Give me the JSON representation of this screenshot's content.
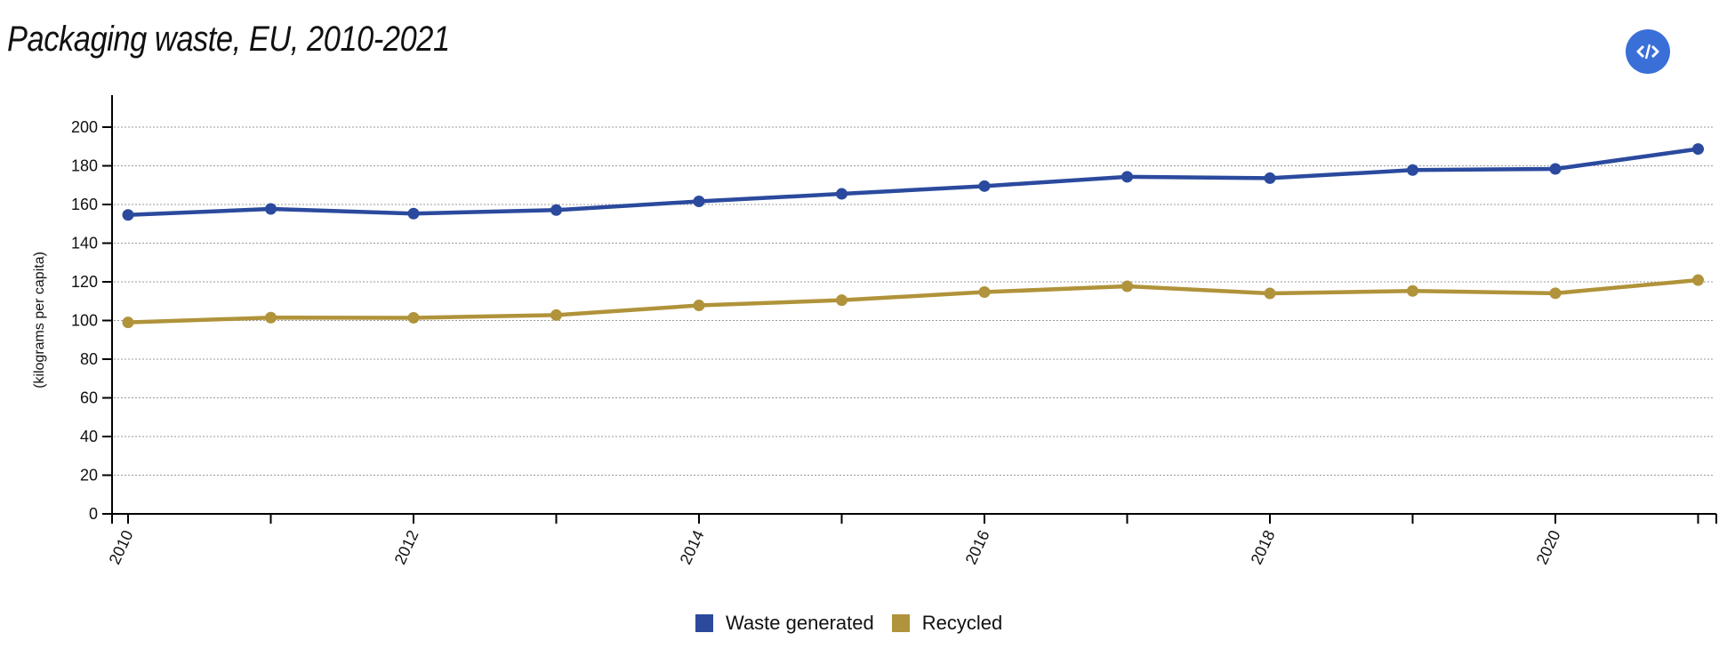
{
  "header": {
    "title": "Packaging waste, EU, 2010-2021",
    "embed_button_icon": "code-embed-icon",
    "embed_button_color": "#3a6fd8"
  },
  "chart_data": {
    "type": "line",
    "title": "Packaging waste, EU, 2010-2021",
    "xlabel": "",
    "ylabel": "(kilograms per capita)",
    "x": [
      2010,
      2011,
      2012,
      2013,
      2014,
      2015,
      2016,
      2017,
      2018,
      2019,
      2020,
      2021
    ],
    "x_tick_labels": [
      "2010",
      "2012",
      "2014",
      "2016",
      "2018",
      "2020"
    ],
    "y_tick_labels": [
      "0",
      "20",
      "40",
      "60",
      "80",
      "100",
      "120",
      "140",
      "160",
      "180",
      "200"
    ],
    "ylim": [
      0,
      215
    ],
    "xlim": [
      2009.9,
      2021.2
    ],
    "grid": true,
    "grid_style": "dotted-horizontal",
    "legend_position": "bottom-center",
    "series": [
      {
        "name": "Waste generated",
        "color": "#2b4a9e",
        "values": [
          154.6,
          157.7,
          155.3,
          157.1,
          161.6,
          165.5,
          169.5,
          174.3,
          173.6,
          177.8,
          178.4,
          188.7
        ]
      },
      {
        "name": "Recycled",
        "color": "#b0933a",
        "values": [
          99.0,
          101.5,
          101.4,
          102.8,
          107.8,
          110.5,
          114.7,
          117.7,
          114.0,
          115.3,
          114.1,
          120.9
        ]
      }
    ]
  }
}
